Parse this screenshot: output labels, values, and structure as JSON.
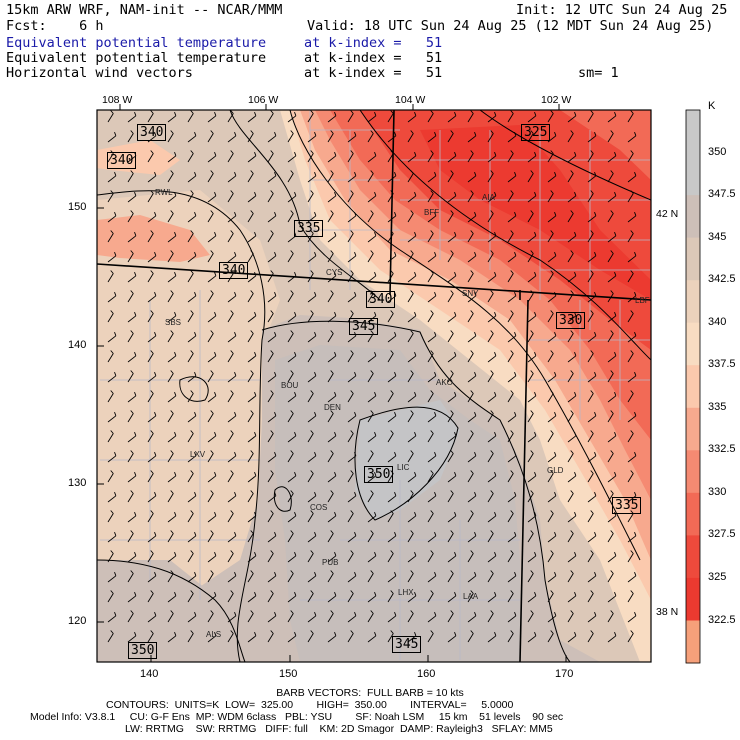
{
  "header": {
    "line1_left": "15km ARW WRF, NAM-init -- NCAR/MMM",
    "line1_right": "Init: 12 UTC Sun 24 Aug 25",
    "line2_left": "Fcst:    6 h",
    "line2_right": "Valid: 18 UTC Sun 24 Aug 25 (12 MDT Sun 24 Aug 25)",
    "fields": [
      {
        "name": "Equivalent potential temperature",
        "level": "at k-index =   51",
        "extra": ""
      },
      {
        "name": "Equivalent potential temperature",
        "level": "at k-index =   51",
        "extra": ""
      },
      {
        "name": "Horizontal wind vectors",
        "level": "at k-index =   51",
        "extra": "sm= 1"
      }
    ]
  },
  "map": {
    "lon_labels": [
      "108 W",
      "106 W",
      "104 W",
      "102 W"
    ],
    "lat_labels_right": [
      "42 N",
      "40 N",
      "38 N"
    ],
    "y_ticks": [
      "150",
      "140",
      "130",
      "120"
    ],
    "x_ticks": [
      "140",
      "150",
      "160",
      "170"
    ],
    "stations": [
      "RWL",
      "CYS",
      "BFF",
      "AIA",
      "SNY",
      "LBF",
      "SBS",
      "BOU",
      "DEN",
      "AKO",
      "LXV",
      "LIC",
      "GLD",
      "COS",
      "PUB",
      "LHX",
      "LAA",
      "ALS"
    ],
    "contour_labels": [
      "340",
      "340",
      "340",
      "335",
      "340",
      "345",
      "325",
      "330",
      "350",
      "335",
      "350",
      "345"
    ]
  },
  "colorbar": {
    "unit": "K",
    "levels": [
      "350",
      "347.5",
      "345",
      "342.5",
      "340",
      "337.5",
      "335",
      "332.5",
      "330",
      "327.5",
      "325",
      "322.5"
    ],
    "colors": [
      "#c8c8c8",
      "#cdbfb8",
      "#dcc8b8",
      "#ecd2bc",
      "#f8dcc2",
      "#fbc9ad",
      "#f7a98e",
      "#f58a72",
      "#f26a56",
      "#ee4a3c",
      "#ec3a30",
      "#f6a07a"
    ]
  },
  "footer": {
    "line1": "BARB VECTORS:  FULL BARB = 10 kts",
    "line2": "CONTOURS:  UNITS=K  LOW=  325.00        HIGH=  350.00        INTERVAL=     5.0000",
    "line3": "Model Info: V3.8.1     CU: G-F Ens  MP: WDM 6class   PBL: YSU        SF: Noah LSM     15 km    51 levels    90 sec",
    "line4": "LW: RRTMG    SW: RRTMG   DIFF: full    KM: 2D Smagor  DAMP: Rayleigh3   SFLAY: MM5"
  }
}
